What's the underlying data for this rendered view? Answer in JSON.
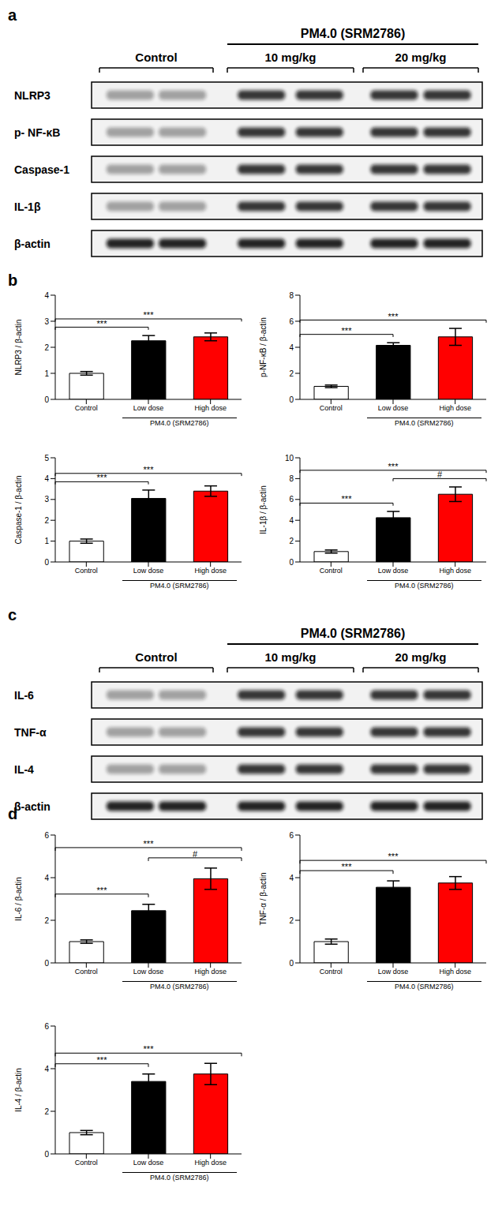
{
  "panel_labels": [
    "a",
    "b",
    "c",
    "d"
  ],
  "blots": [
    {
      "panel": "a",
      "header": "PM4.0 (SRM2786)",
      "groups": [
        "Control",
        "10 mg/kg",
        "20 mg/kg"
      ],
      "header_groups": [
        "10 mg/kg",
        "20 mg/kg"
      ],
      "rows": [
        "NLRP3",
        "p- NF-κB",
        "Caspase-1",
        "IL-1β",
        "β-actin"
      ]
    },
    {
      "panel": "c",
      "header": "PM4.0 (SRM2786)",
      "groups": [
        "Control",
        "10 mg/kg",
        "20 mg/kg"
      ],
      "header_groups": [
        "10 mg/kg",
        "20 mg/kg"
      ],
      "rows": [
        "IL-6",
        "TNF-α",
        "IL-4",
        "β-actin"
      ]
    }
  ],
  "chart_data": [
    {
      "panel": "b",
      "type": "bar",
      "y_label": "NLRP3 / β-actin",
      "categories": [
        "Control",
        "Low dose",
        "High dose"
      ],
      "values": [
        1.0,
        2.25,
        2.4
      ],
      "error": [
        0.07,
        0.2,
        0.15
      ],
      "colors": [
        "#ffffff",
        "#000000",
        "#ff0000"
      ],
      "ylim": [
        0,
        4
      ],
      "yticks": [
        0,
        1,
        2,
        3,
        4
      ],
      "group_label": "PM4.0 (SRM2786)",
      "group_categories": [
        "Low dose",
        "High dose"
      ],
      "annotations": [
        {
          "from": "Control",
          "to": "Low dose",
          "text": "***"
        },
        {
          "from": "Control",
          "to": "High dose",
          "text": "***"
        }
      ]
    },
    {
      "panel": "b",
      "type": "bar",
      "y_label": "p-NF-κB / β-actin",
      "categories": [
        "Control",
        "Low dose",
        "High dose"
      ],
      "values": [
        1.0,
        4.15,
        4.8
      ],
      "error": [
        0.1,
        0.2,
        0.65
      ],
      "colors": [
        "#ffffff",
        "#000000",
        "#ff0000"
      ],
      "ylim": [
        0,
        8
      ],
      "yticks": [
        0,
        2,
        4,
        6,
        8
      ],
      "group_label": "PM4.0 (SRM2786)",
      "group_categories": [
        "Low dose",
        "High dose"
      ],
      "annotations": [
        {
          "from": "Control",
          "to": "Low dose",
          "text": "***"
        },
        {
          "from": "Control",
          "to": "High dose",
          "text": "***"
        }
      ]
    },
    {
      "panel": "b",
      "type": "bar",
      "y_label": "Caspase-1 / β-actin",
      "categories": [
        "Control",
        "Low dose",
        "High dose"
      ],
      "values": [
        1.0,
        3.05,
        3.4
      ],
      "error": [
        0.1,
        0.4,
        0.25
      ],
      "colors": [
        "#ffffff",
        "#000000",
        "#ff0000"
      ],
      "ylim": [
        0,
        5
      ],
      "yticks": [
        0,
        1,
        2,
        3,
        4,
        5
      ],
      "group_label": "PM4.0 (SRM2786)",
      "group_categories": [
        "Low dose",
        "High dose"
      ],
      "annotations": [
        {
          "from": "Control",
          "to": "Low dose",
          "text": "***"
        },
        {
          "from": "Control",
          "to": "High dose",
          "text": "***"
        }
      ]
    },
    {
      "panel": "b",
      "type": "bar",
      "y_label": "IL-1β / β-actin",
      "categories": [
        "Control",
        "Low dose",
        "High dose"
      ],
      "values": [
        1.0,
        4.25,
        6.5
      ],
      "error": [
        0.15,
        0.6,
        0.7
      ],
      "colors": [
        "#ffffff",
        "#000000",
        "#ff0000"
      ],
      "ylim": [
        0,
        10
      ],
      "yticks": [
        0,
        2,
        4,
        6,
        8,
        10
      ],
      "group_label": "PM4.0 (SRM2786)",
      "group_categories": [
        "Low dose",
        "High dose"
      ],
      "annotations": [
        {
          "from": "Control",
          "to": "Low dose",
          "text": "***"
        },
        {
          "from": "Low dose",
          "to": "High dose",
          "text": "#"
        },
        {
          "from": "Control",
          "to": "High dose",
          "text": "***"
        }
      ]
    },
    {
      "panel": "d",
      "type": "bar",
      "y_label": "IL-6 / β-actin",
      "categories": [
        "Control",
        "Low dose",
        "High dose"
      ],
      "values": [
        1.0,
        2.45,
        3.95
      ],
      "error": [
        0.08,
        0.3,
        0.5
      ],
      "colors": [
        "#ffffff",
        "#000000",
        "#ff0000"
      ],
      "ylim": [
        0,
        6
      ],
      "yticks": [
        0,
        2,
        4,
        6
      ],
      "group_label": "PM4.0 (SRM2786)",
      "group_categories": [
        "Low dose",
        "High dose"
      ],
      "annotations": [
        {
          "from": "Control",
          "to": "Low dose",
          "text": "***"
        },
        {
          "from": "Low dose",
          "to": "High dose",
          "text": "#"
        },
        {
          "from": "Control",
          "to": "High dose",
          "text": "***"
        }
      ]
    },
    {
      "panel": "d",
      "type": "bar",
      "y_label": "TNF-α / β-actin",
      "categories": [
        "Control",
        "Low dose",
        "High dose"
      ],
      "values": [
        1.0,
        3.55,
        3.75
      ],
      "error": [
        0.12,
        0.3,
        0.3
      ],
      "colors": [
        "#ffffff",
        "#000000",
        "#ff0000"
      ],
      "ylim": [
        0,
        6
      ],
      "yticks": [
        0,
        2,
        4,
        6
      ],
      "group_label": "PM4.0 (SRM2786)",
      "group_categories": [
        "Low dose",
        "High dose"
      ],
      "annotations": [
        {
          "from": "Control",
          "to": "Low dose",
          "text": "***"
        },
        {
          "from": "Control",
          "to": "High dose",
          "text": "***"
        }
      ]
    },
    {
      "panel": "d",
      "type": "bar",
      "y_label": "IL-4 / β-actin",
      "categories": [
        "Control",
        "Low dose",
        "High dose"
      ],
      "values": [
        1.0,
        3.4,
        3.75
      ],
      "error": [
        0.1,
        0.35,
        0.5
      ],
      "colors": [
        "#ffffff",
        "#000000",
        "#ff0000"
      ],
      "ylim": [
        0,
        6
      ],
      "yticks": [
        0,
        2,
        4,
        6
      ],
      "group_label": "PM4.0 (SRM2786)",
      "group_categories": [
        "Low dose",
        "High dose"
      ],
      "annotations": [
        {
          "from": "Control",
          "to": "Low dose",
          "text": "***"
        },
        {
          "from": "Control",
          "to": "High dose",
          "text": "***"
        }
      ]
    }
  ]
}
